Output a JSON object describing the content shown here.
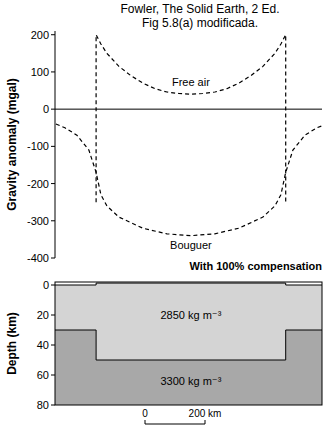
{
  "chart_data": [
    {
      "type": "line",
      "title": "Fowler, The Solid Earth, 2 Ed.",
      "subtitle": "Fig 5.8(a) modificada.",
      "y_label": "Gravity anomaly (mgal)",
      "xlim": [
        -300,
        590
      ],
      "ylim": [
        -400,
        210
      ],
      "yticks": [
        -400,
        -300,
        -200,
        -100,
        0,
        100,
        200
      ],
      "tick_labels": "y",
      "grid": false,
      "reference_line": 0,
      "series": [
        {
          "name": "Free air",
          "color": "#000000",
          "line_style": "dashed",
          "x": [
            -163,
            -163,
            -147,
            -127,
            -87,
            -47,
            -7,
            33,
            73,
            113,
            153,
            193,
            233,
            273,
            313,
            353,
            393,
            433,
            453,
            469,
            469
          ],
          "values": [
            -250,
            200,
            175,
            150,
            115,
            90,
            70,
            55,
            46,
            42,
            40,
            42,
            46,
            55,
            70,
            90,
            115,
            150,
            175,
            200,
            -250
          ]
        },
        {
          "name": "Bouguer",
          "color": "#000000",
          "line_style": "dashed",
          "x": [
            -297,
            -267,
            -227,
            -187,
            -163,
            -147,
            -127,
            -87,
            -7,
            73,
            153,
            233,
            313,
            393,
            433,
            453,
            469,
            493,
            533,
            573,
            590
          ],
          "values": [
            -40,
            -50,
            -70,
            -110,
            -170,
            -230,
            -260,
            -290,
            -320,
            -335,
            -340,
            -335,
            -320,
            -290,
            -260,
            -230,
            -170,
            -110,
            -70,
            -50,
            -45
          ]
        }
      ],
      "annotations": [
        {
          "text": "Free air",
          "x": 153,
          "y": 62
        },
        {
          "text": "Bouguer",
          "x": 153,
          "y": -375
        }
      ]
    },
    {
      "type": "cross-section",
      "title": "With 100% compensation",
      "y_label": "Depth (km)",
      "xlim": [
        -300,
        590
      ],
      "ylim": [
        -2,
        80
      ],
      "yticks": [
        0,
        20,
        40,
        60,
        80
      ],
      "tick_labels": "y",
      "surface": {
        "x": [
          -300,
          -163,
          -163,
          469,
          469,
          590
        ],
        "depth": [
          0,
          0,
          -1.3,
          -1.3,
          0,
          0
        ]
      },
      "moho": {
        "x": [
          -300,
          -163,
          -163,
          469,
          469,
          590
        ],
        "depth": [
          30,
          30,
          50,
          50,
          30,
          30
        ]
      },
      "layers": [
        {
          "label": "2850 kg m⁻³",
          "color": "#d4d4d4",
          "label_x": 153,
          "label_depth": 20
        },
        {
          "label": "3300 kg m⁻³",
          "color": "#a8a8a8",
          "label_x": 153,
          "label_depth": 64
        }
      ],
      "scale_bar": [
        {
          "value": 0,
          "label": "0"
        },
        {
          "value": 200,
          "label": "200 km"
        }
      ]
    }
  ]
}
